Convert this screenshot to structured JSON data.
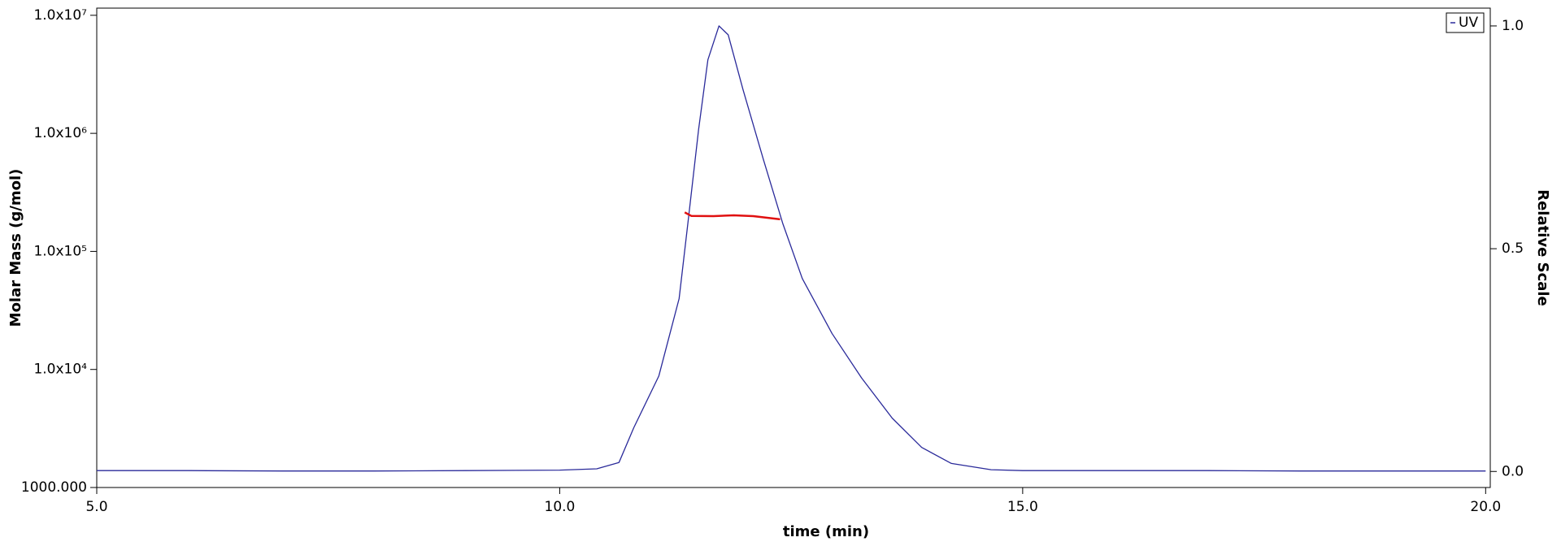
{
  "chart_data": {
    "type": "line",
    "x_label": "time (min)",
    "y_label": "Molar Mass (g/mol)",
    "y2_label": "Relative Scale",
    "xlim": [
      5.0,
      20.05
    ],
    "xticks": [
      {
        "value": 5,
        "label": "5.0"
      },
      {
        "value": 10,
        "label": "10.0"
      },
      {
        "value": 15,
        "label": "15.0"
      },
      {
        "value": 20,
        "label": "20.0"
      }
    ],
    "y_scale": "log",
    "ylim": [
      1000,
      11500000
    ],
    "yticks": [
      {
        "value": 1000,
        "label": "1000.000"
      },
      {
        "value": 10000,
        "label": "1.0x10⁴"
      },
      {
        "value": 100000,
        "label": "1.0x10⁵"
      },
      {
        "value": 1000000,
        "label": "1.0x10⁶"
      },
      {
        "value": 10000000,
        "label": "1.0x10⁷"
      }
    ],
    "y2lim": [
      -0.036,
      1.04
    ],
    "y2ticks": [
      {
        "value": 0,
        "label": "0.0"
      },
      {
        "value": 0.5,
        "label": "0.5"
      },
      {
        "value": 1,
        "label": "1.0"
      }
    ],
    "legend": "upper right",
    "series": [
      {
        "name": "UV",
        "color": "#2a2a9a",
        "axis": "y2",
        "in_legend": true,
        "x": [
          5.0,
          6.0,
          7.0,
          8.0,
          9.0,
          10.0,
          10.4,
          10.64,
          10.8,
          11.07,
          11.29,
          11.39,
          11.5,
          11.6,
          11.72,
          11.82,
          11.98,
          12.2,
          12.41,
          12.62,
          12.94,
          13.26,
          13.59,
          13.91,
          14.23,
          14.66,
          15.0,
          16.0,
          17.0,
          18.0,
          19.0,
          20.0
        ],
        "values": [
          0.002,
          0.002,
          0.001,
          0.001,
          0.002,
          0.003,
          0.006,
          0.02,
          0.098,
          0.214,
          0.388,
          0.567,
          0.768,
          0.924,
          1.0,
          0.98,
          0.857,
          0.7,
          0.556,
          0.433,
          0.31,
          0.21,
          0.12,
          0.054,
          0.018,
          0.004,
          0.002,
          0.002,
          0.002,
          0.001,
          0.001,
          0.001
        ]
      },
      {
        "name": "Molar Mass",
        "color": "#e01010",
        "axis": "y",
        "in_legend": false,
        "x": [
          11.35,
          11.42,
          11.66,
          11.88,
          12.09,
          12.38
        ],
        "values": [
          214000,
          200000,
          199000,
          202000,
          199000,
          187000
        ]
      }
    ]
  }
}
